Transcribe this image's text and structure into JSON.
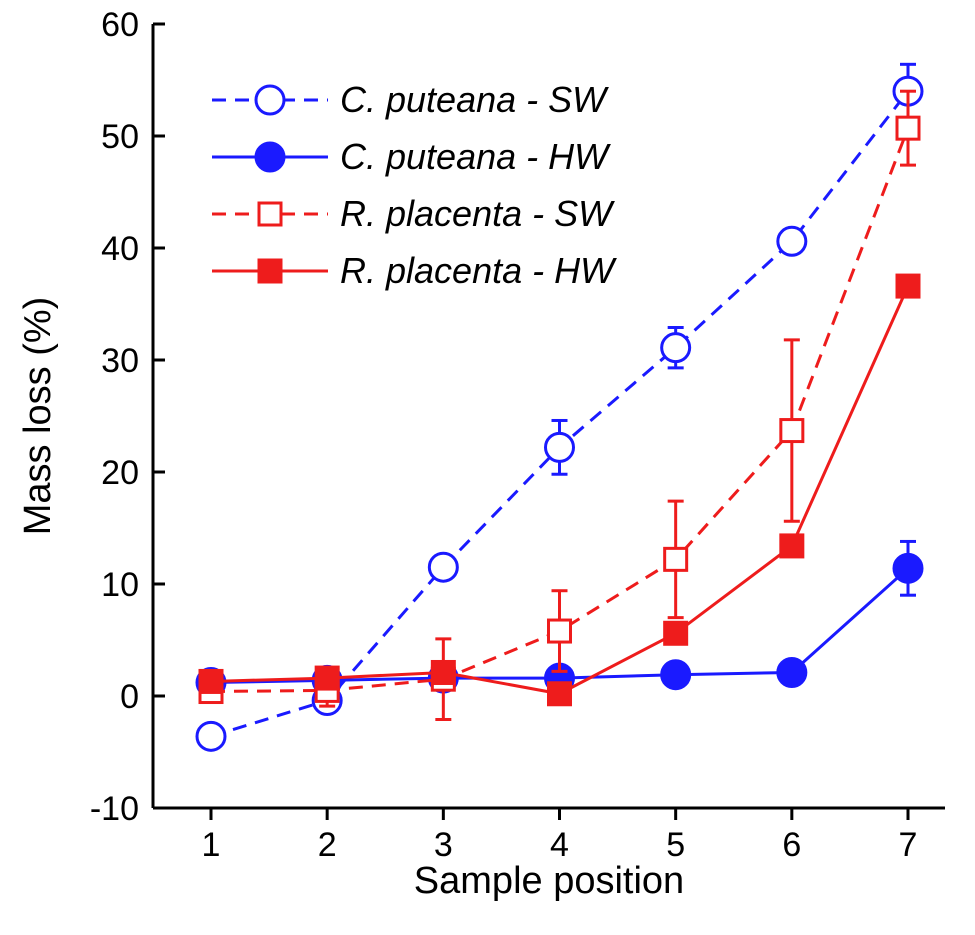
{
  "chart_data": {
    "type": "line",
    "title": "",
    "xlabel": "Sample position",
    "ylabel": "Mass loss (%)",
    "x": [
      1,
      2,
      3,
      4,
      5,
      6,
      7
    ],
    "xlim": [
      0.5,
      7.5
    ],
    "ylim": [
      -10,
      60
    ],
    "yticks": [
      -10,
      0,
      10,
      20,
      30,
      40,
      50,
      60
    ],
    "xticks": [
      1,
      2,
      3,
      4,
      5,
      6,
      7
    ],
    "grid": false,
    "legend_position": "top-left",
    "series": [
      {
        "name": "C. puteana - SW",
        "color": "#1a1aff",
        "line": "dashed",
        "marker": "circle-open",
        "values": [
          -3.6,
          -0.4,
          11.5,
          22.2,
          31.1,
          40.6,
          54.0
        ],
        "error": [
          null,
          null,
          null,
          2.4,
          1.8,
          null,
          2.4
        ]
      },
      {
        "name": "C. puteana - HW",
        "color": "#1a1aff",
        "line": "solid",
        "marker": "circle-filled",
        "values": [
          1.2,
          1.4,
          1.6,
          1.6,
          1.9,
          2.1,
          11.4
        ],
        "error": [
          null,
          null,
          null,
          null,
          null,
          null,
          2.4
        ]
      },
      {
        "name": "R. placenta - SW",
        "color": "#ee1c1c",
        "line": "dashed",
        "marker": "square-open",
        "values": [
          0.4,
          0.5,
          1.5,
          5.8,
          12.2,
          23.7,
          50.7
        ],
        "error": [
          null,
          1.4,
          3.6,
          3.6,
          5.2,
          8.1,
          3.3
        ]
      },
      {
        "name": "R. placenta - HW",
        "color": "#ee1c1c",
        "line": "solid",
        "marker": "square-filled",
        "values": [
          1.3,
          1.6,
          2.1,
          0.2,
          5.6,
          13.4,
          36.6
        ],
        "error": [
          null,
          null,
          null,
          0.8,
          null,
          null,
          0.9
        ]
      }
    ]
  }
}
